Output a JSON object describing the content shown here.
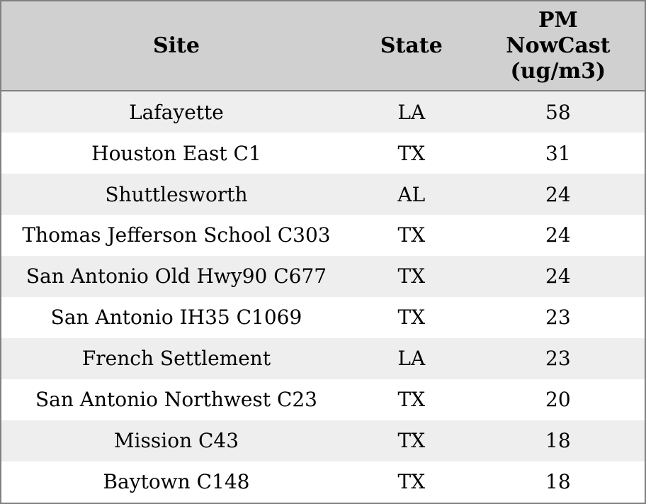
{
  "chart_data": {
    "type": "table",
    "columns": [
      "Site",
      "State",
      "PM NowCast (ug/m3)"
    ],
    "rows": [
      [
        "Lafayette",
        "LA",
        58
      ],
      [
        "Houston East C1",
        "TX",
        31
      ],
      [
        "Shuttlesworth",
        "AL",
        24
      ],
      [
        "Thomas Jefferson School C303",
        "TX",
        24
      ],
      [
        "San Antonio Old Hwy90 C677",
        "TX",
        24
      ],
      [
        "San Antonio IH35 C1069",
        "TX",
        23
      ],
      [
        "French Settlement",
        "LA",
        23
      ],
      [
        "San Antonio Northwest C23",
        "TX",
        20
      ],
      [
        "Mission C43",
        "TX",
        18
      ],
      [
        "Baytown C148",
        "TX",
        18
      ]
    ],
    "layout": {
      "legend": false,
      "grid": false,
      "striped_rows": true
    }
  },
  "table": {
    "header": {
      "site": "Site",
      "state": "State",
      "pm_nowcast": "PM\nNowCast\n(ug/m3)"
    }
  },
  "colors": {
    "header_bg": "#d0d0d0",
    "row_alt_bg": "#eeeeee",
    "row_bg": "#ffffff",
    "border": "#808080",
    "text": "#000000"
  }
}
